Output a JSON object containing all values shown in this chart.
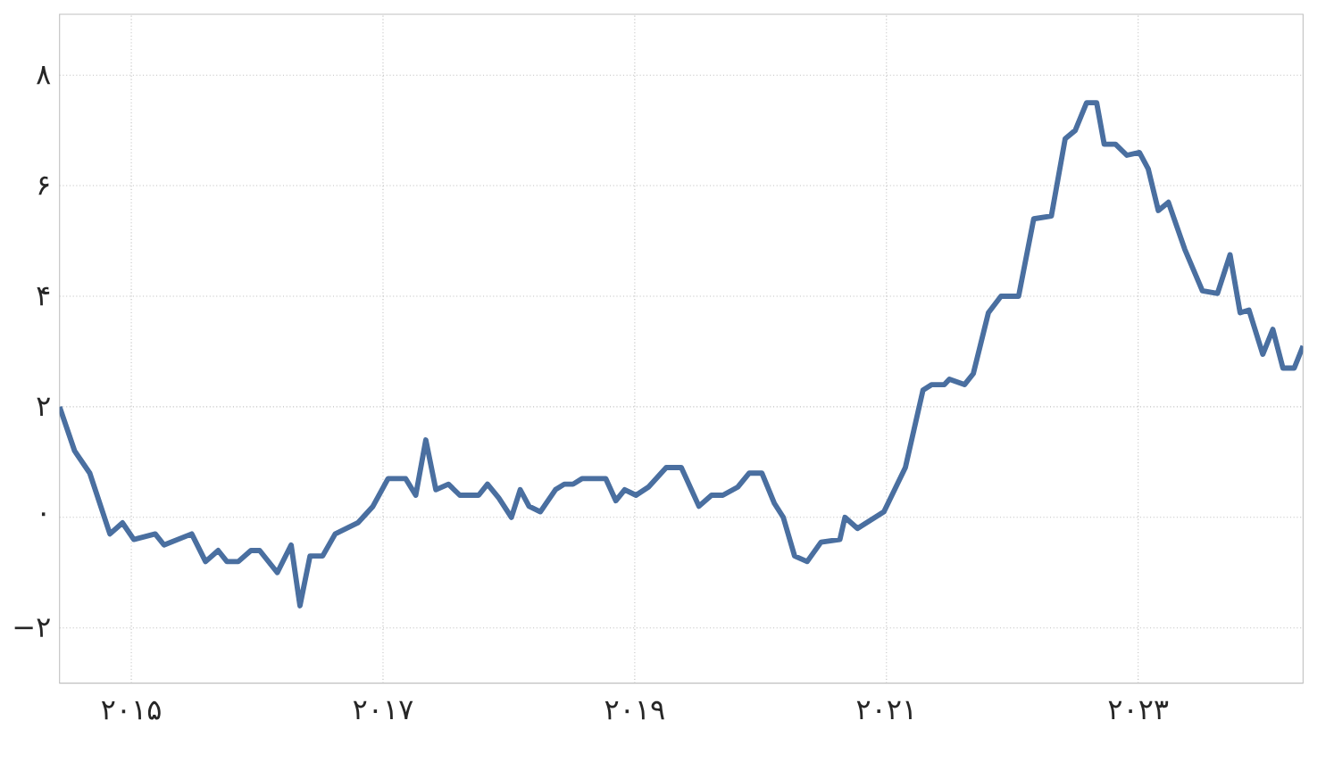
{
  "chart_data": {
    "type": "line",
    "color": "#4a6fa0",
    "grid": true,
    "line_style": "solid",
    "x": [
      2014.43,
      2014.55,
      2014.67,
      2014.83,
      2014.93,
      2015.02,
      2015.19,
      2015.26,
      2015.48,
      2015.59,
      2015.69,
      2015.76,
      2015.85,
      2015.95,
      2016.02,
      2016.16,
      2016.27,
      2016.34,
      2016.42,
      2016.52,
      2016.62,
      2016.8,
      2016.92,
      2017.04,
      2017.18,
      2017.26,
      2017.34,
      2017.42,
      2017.52,
      2017.61,
      2017.76,
      2017.83,
      2017.92,
      2018.02,
      2018.09,
      2018.16,
      2018.25,
      2018.37,
      2018.44,
      2018.51,
      2018.58,
      2018.77,
      2018.85,
      2018.92,
      2019.01,
      2019.11,
      2019.25,
      2019.37,
      2019.51,
      2019.61,
      2019.7,
      2019.82,
      2019.91,
      2020.01,
      2020.11,
      2020.18,
      2020.27,
      2020.37,
      2020.48,
      2020.63,
      2020.67,
      2020.77,
      2020.98,
      2021.15,
      2021.29,
      2021.36,
      2021.46,
      2021.5,
      2021.62,
      2021.69,
      2021.81,
      2021.91,
      2022.05,
      2022.17,
      2022.31,
      2022.42,
      2022.5,
      2022.59,
      2022.67,
      2022.73,
      2022.82,
      2022.91,
      2023.01,
      2023.08,
      2023.16,
      2023.24,
      2023.37,
      2023.51,
      2023.63,
      2023.73,
      2023.81,
      2023.88,
      2023.99,
      2024.07,
      2024.15,
      2024.24,
      2024.31
    ],
    "values": [
      2.0,
      1.2,
      0.8,
      -0.3,
      -0.1,
      -0.4,
      -0.3,
      -0.5,
      -0.3,
      -0.8,
      -0.6,
      -0.8,
      -0.8,
      -0.6,
      -0.6,
      -1.0,
      -0.5,
      -1.6,
      -0.7,
      -0.7,
      -0.3,
      -0.1,
      0.2,
      0.7,
      0.7,
      0.4,
      1.4,
      0.5,
      0.6,
      0.4,
      0.4,
      0.6,
      0.35,
      0.0,
      0.5,
      0.2,
      0.1,
      0.5,
      0.6,
      0.6,
      0.7,
      0.7,
      0.3,
      0.5,
      0.4,
      0.55,
      0.9,
      0.9,
      0.2,
      0.4,
      0.4,
      0.55,
      0.8,
      0.8,
      0.25,
      0.0,
      -0.7,
      -0.8,
      -0.45,
      -0.4,
      0.0,
      -0.2,
      0.1,
      0.9,
      2.3,
      2.4,
      2.4,
      2.5,
      2.4,
      2.6,
      3.7,
      4.0,
      4.0,
      5.4,
      5.45,
      6.85,
      7.0,
      7.5,
      7.5,
      6.75,
      6.75,
      6.55,
      6.6,
      6.3,
      5.55,
      5.7,
      4.85,
      4.1,
      4.05,
      4.75,
      3.7,
      3.75,
      2.95,
      3.4,
      2.7,
      2.7,
      3.1
    ],
    "xlim": [
      2014.43,
      2024.31
    ],
    "ylim": [
      -3,
      9.1
    ],
    "xticks": [
      {
        "value": 2015,
        "label": "۲۰۱۵"
      },
      {
        "value": 2017,
        "label": "۲۰۱۷"
      },
      {
        "value": 2019,
        "label": "۲۰۱۹"
      },
      {
        "value": 2021,
        "label": "۲۰۲۱"
      },
      {
        "value": 2023,
        "label": "۲۰۲۳"
      }
    ],
    "yticks": [
      {
        "value": -2,
        "label": "−۲"
      },
      {
        "value": 0,
        "label": "۰"
      },
      {
        "value": 2,
        "label": "۲"
      },
      {
        "value": 4,
        "label": "۴"
      },
      {
        "value": 6,
        "label": "۶"
      },
      {
        "value": 8,
        "label": "۸"
      }
    ]
  }
}
